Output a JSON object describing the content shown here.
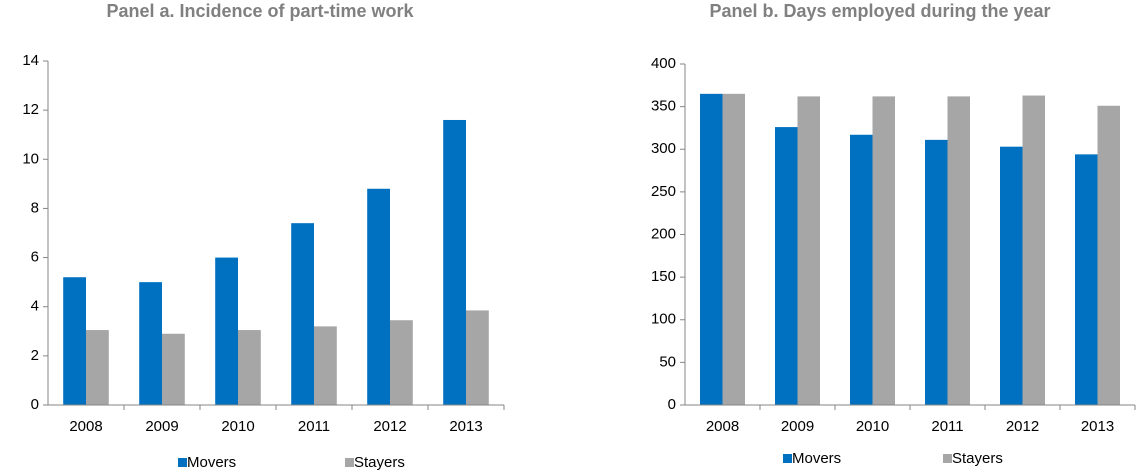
{
  "chart_data": [
    {
      "type": "bar",
      "title": "Panel a. Incidence of part-time work",
      "categories": [
        "2008",
        "2009",
        "2010",
        "2011",
        "2012",
        "2013"
      ],
      "series": [
        {
          "name": "Movers",
          "color": "#0070c0",
          "values": [
            5.2,
            5.0,
            6.0,
            7.4,
            8.8,
            11.6
          ]
        },
        {
          "name": "Stayers",
          "color": "#a6a6a6",
          "values": [
            3.05,
            2.9,
            3.05,
            3.2,
            3.45,
            3.85
          ]
        }
      ],
      "ylim": [
        0,
        14
      ],
      "yticks": [
        0,
        2,
        4,
        6,
        8,
        10,
        12,
        14
      ]
    },
    {
      "type": "bar",
      "title": "Panel b. Days employed during the year",
      "categories": [
        "2008",
        "2009",
        "2010",
        "2011",
        "2012",
        "2013"
      ],
      "series": [
        {
          "name": "Movers",
          "color": "#0070c0",
          "values": [
            365,
            326,
            317,
            311,
            303,
            294
          ]
        },
        {
          "name": "Stayers",
          "color": "#a6a6a6",
          "values": [
            365,
            362,
            362,
            362,
            363,
            351
          ]
        }
      ],
      "ylim": [
        0,
        400
      ],
      "yticks": [
        0,
        50,
        100,
        150,
        200,
        250,
        300,
        350,
        400
      ]
    }
  ]
}
